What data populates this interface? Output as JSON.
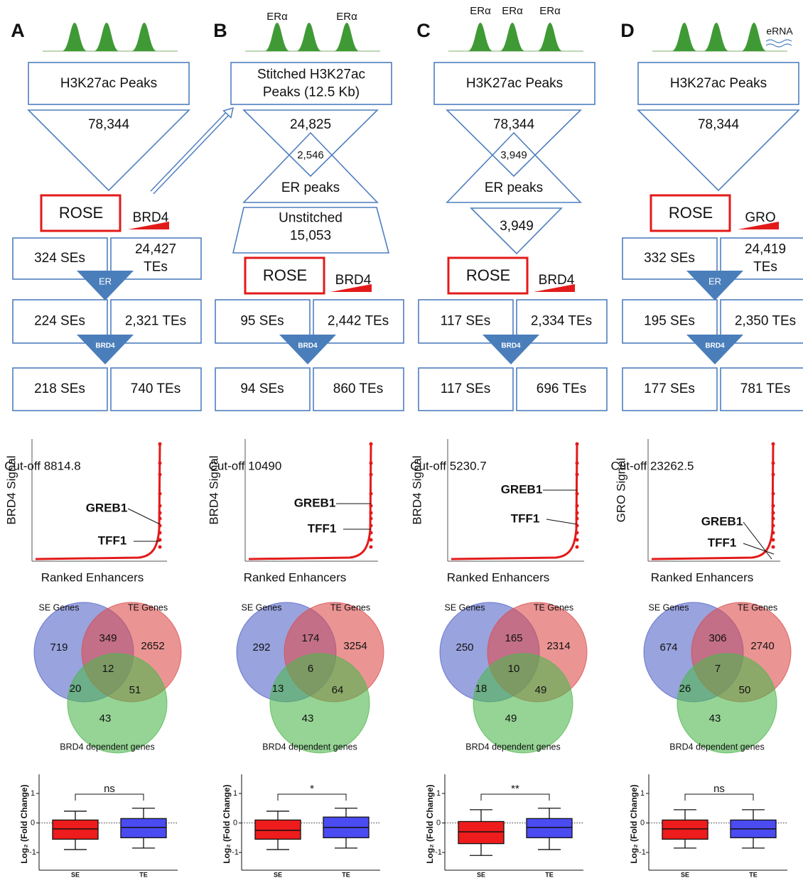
{
  "panels": [
    {
      "label": "A",
      "flow": {
        "top_box": [
          "H3K27ac Peaks"
        ],
        "peak_count": "78,344",
        "rose": "ROSE",
        "signal": "BRD4",
        "stages": [
          {
            "se": "324 SEs",
            "te": [
              "24,427",
              "TEs"
            ],
            "filter": "ER"
          },
          {
            "se": "224 SEs",
            "te": [
              "2,321 TEs"
            ],
            "filter": "BRD4"
          },
          {
            "se": "218 SEs",
            "te": [
              "740 TEs"
            ]
          }
        ]
      },
      "ranked": {
        "ylabel": "BRD4 Signal",
        "xlabel": "Ranked Enhancers",
        "cutoff": "Cut-off 8814.8",
        "genes": [
          "GREB1",
          "TFF1"
        ]
      },
      "venn": {
        "labels": [
          "SE Genes",
          "TE Genes",
          "BRD4 dependent genes"
        ],
        "regions": {
          "se_only": 719,
          "se_te": 349,
          "te_only": 2652,
          "all": 12,
          "se_brd4": 20,
          "te_brd4": 51,
          "brd4_only": 43
        }
      },
      "boxplot": {
        "ylabel": "Log₂ (Fold Change)",
        "ylim": [
          -1.6,
          1.65
        ],
        "yticks": [
          1,
          0,
          -1
        ],
        "categories": [
          "SE",
          "TE"
        ],
        "colors": [
          "#ee1c1c",
          "#4b4bf2"
        ],
        "significance": "ns",
        "boxes": [
          {
            "whisker_low": -0.9,
            "q1": -0.55,
            "median": -0.2,
            "q3": 0.1,
            "whisker_high": 0.4
          },
          {
            "whisker_low": -0.85,
            "q1": -0.5,
            "median": -0.15,
            "q3": 0.15,
            "whisker_high": 0.5
          }
        ]
      }
    },
    {
      "label": "B",
      "peak_labels": [
        "ERα",
        "ERα"
      ],
      "flow": {
        "top_box": [
          "Stitched H3K27ac",
          "Peaks (12.5 Kb)"
        ],
        "peak_count": "24,825",
        "overlap_count": "2,546",
        "er_peaks": "ER peaks",
        "unstitched": [
          "Unstitched",
          "15,053"
        ],
        "rose": "ROSE",
        "signal": "BRD4",
        "stages": [
          {
            "se": "95 SEs",
            "te": [
              "2,442 TEs"
            ],
            "filter": "BRD4"
          },
          {
            "se": "94 SEs",
            "te": [
              "860 TEs"
            ]
          }
        ]
      },
      "ranked": {
        "ylabel": "BRD4 Signal",
        "xlabel": "Ranked Enhancers",
        "cutoff": "Cut-off 10490",
        "genes": [
          "GREB1",
          "TFF1"
        ]
      },
      "venn": {
        "labels": [
          "SE Genes",
          "TE Genes",
          "BRD4 dependent genes"
        ],
        "regions": {
          "se_only": 292,
          "se_te": 174,
          "te_only": 3254,
          "all": 6,
          "se_brd4": 13,
          "te_brd4": 64,
          "brd4_only": 43
        }
      },
      "boxplot": {
        "ylabel": "Log₂ (Fold Change)",
        "ylim": [
          -1.6,
          1.65
        ],
        "yticks": [
          1,
          0,
          -1
        ],
        "categories": [
          "SE",
          "TE"
        ],
        "colors": [
          "#ee1c1c",
          "#4b4bf2"
        ],
        "significance": "*",
        "boxes": [
          {
            "whisker_low": -0.9,
            "q1": -0.55,
            "median": -0.25,
            "q3": 0.1,
            "whisker_high": 0.4
          },
          {
            "whisker_low": -0.85,
            "q1": -0.5,
            "median": -0.15,
            "q3": 0.2,
            "whisker_high": 0.5
          }
        ]
      }
    },
    {
      "label": "C",
      "peak_labels": [
        "ERα",
        "ERα",
        "ERα"
      ],
      "flow": {
        "top_box": [
          "H3K27ac Peaks"
        ],
        "peak_count": "78,344",
        "overlap_count": "3,949",
        "er_peaks": "ER peaks",
        "er_peak_count": "3,949",
        "rose": "ROSE",
        "signal": "BRD4",
        "stages": [
          {
            "se": "117 SEs",
            "te": [
              "2,334 TEs"
            ],
            "filter": "BRD4"
          },
          {
            "se": "117 SEs",
            "te": [
              "696 TEs"
            ]
          }
        ]
      },
      "ranked": {
        "ylabel": "BRD4 Signal",
        "xlabel": "Ranked Enhancers",
        "cutoff": "Cut-off 5230.7",
        "genes": [
          "GREB1",
          "TFF1"
        ]
      },
      "venn": {
        "labels": [
          "SE Genes",
          "TE Genes",
          "BRD4 dependent genes"
        ],
        "regions": {
          "se_only": 250,
          "se_te": 165,
          "te_only": 2314,
          "all": 10,
          "se_brd4": 18,
          "te_brd4": 49,
          "brd4_only": 49
        }
      },
      "boxplot": {
        "ylabel": "Log₂ (Fold Change)",
        "ylim": [
          -1.6,
          1.65
        ],
        "yticks": [
          1,
          0,
          -1
        ],
        "categories": [
          "SE",
          "TE"
        ],
        "colors": [
          "#ee1c1c",
          "#4b4bf2"
        ],
        "significance": "**",
        "boxes": [
          {
            "whisker_low": -1.1,
            "q1": -0.7,
            "median": -0.3,
            "q3": 0.05,
            "whisker_high": 0.45
          },
          {
            "whisker_low": -0.9,
            "q1": -0.5,
            "median": -0.15,
            "q3": 0.15,
            "whisker_high": 0.5
          }
        ]
      }
    },
    {
      "label": "D",
      "peak_labels": [
        "eRNA"
      ],
      "flow": {
        "top_box": [
          "H3K27ac Peaks"
        ],
        "peak_count": "78,344",
        "rose": "ROSE",
        "signal": "GRO",
        "stages": [
          {
            "se": "332 SEs",
            "te": [
              "24,419",
              "TEs"
            ],
            "filter": "ER"
          },
          {
            "se": "195 SEs",
            "te": [
              "2,350 TEs"
            ],
            "filter": "BRD4"
          },
          {
            "se": "177 SEs",
            "te": [
              "781 TEs"
            ]
          }
        ]
      },
      "ranked": {
        "ylabel": "GRO Signal",
        "xlabel": "Ranked Enhancers",
        "cutoff": "Cut-off 23262.5",
        "genes": [
          "GREB1",
          "TFF1"
        ]
      },
      "venn": {
        "labels": [
          "SE Genes",
          "TE Genes",
          "BRD4 dependent genes"
        ],
        "regions": {
          "se_only": 674,
          "se_te": 306,
          "te_only": 2740,
          "all": 7,
          "se_brd4": 26,
          "te_brd4": 50,
          "brd4_only": 43
        }
      },
      "boxplot": {
        "ylabel": "Log₂ (Fold Change)",
        "ylim": [
          -1.6,
          1.65
        ],
        "yticks": [
          1,
          0,
          -1
        ],
        "categories": [
          "SE",
          "TE"
        ],
        "colors": [
          "#ee1c1c",
          "#4b4bf2"
        ],
        "significance": "ns",
        "boxes": [
          {
            "whisker_low": -0.85,
            "q1": -0.55,
            "median": -0.2,
            "q3": 0.1,
            "whisker_high": 0.45
          },
          {
            "whisker_low": -0.85,
            "q1": -0.5,
            "median": -0.2,
            "q3": 0.1,
            "whisker_high": 0.45
          }
        ]
      }
    }
  ]
}
